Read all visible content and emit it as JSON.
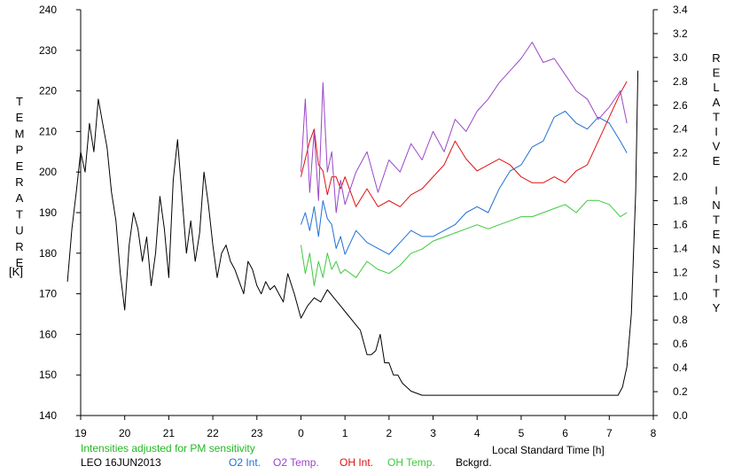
{
  "chart_data": {
    "type": "line",
    "left_axis_label": "TEMPERATURE",
    "left_axis_unit": "[K]",
    "right_axis_label": "RELATIVE INTENSITY",
    "xlabel": "Local Standard Time [h]",
    "note": "Intensities adjusted for PM sensitivity",
    "station": "LEO 16JUN2013",
    "left_ylim": [
      140,
      240
    ],
    "left_yticks": [
      140,
      150,
      160,
      170,
      180,
      190,
      200,
      210,
      220,
      230,
      240
    ],
    "right_ylim": [
      0.0,
      3.4
    ],
    "right_yticks": [
      "0.0",
      "0.2",
      "0.4",
      "0.6",
      "0.8",
      "1.0",
      "1.2",
      "1.4",
      "1.6",
      "1.8",
      "2.0",
      "2.2",
      "2.4",
      "2.6",
      "2.8",
      "3.0",
      "3.2",
      "3.4"
    ],
    "x_ticks": [
      "19",
      "20",
      "21",
      "22",
      "23",
      "0",
      "1",
      "2",
      "3",
      "4",
      "5",
      "6",
      "7",
      "8"
    ],
    "colors": {
      "o2_int": "#1f6fd6",
      "o2_temp": "#9a46c8",
      "oh_int": "#e01010",
      "oh_temp": "#3ec83e",
      "bckgrd": "#000000",
      "note": "#22b822"
    },
    "series": [
      {
        "name": "O2 Int.",
        "axis": "right",
        "x": [
          0.0,
          0.1,
          0.2,
          0.3,
          0.4,
          0.5,
          0.6,
          0.7,
          0.8,
          0.9,
          1.0,
          1.25,
          1.5,
          1.75,
          2.0,
          2.25,
          2.5,
          2.75,
          3.0,
          3.25,
          3.5,
          3.75,
          4.0,
          4.25,
          4.5,
          4.75,
          5.0,
          5.25,
          5.5,
          5.75,
          6.0,
          6.25,
          6.5,
          6.75,
          7.0,
          7.25,
          7.4
        ],
        "values": [
          1.6,
          1.7,
          1.55,
          1.75,
          1.5,
          1.8,
          1.65,
          1.6,
          1.4,
          1.5,
          1.35,
          1.55,
          1.45,
          1.4,
          1.35,
          1.45,
          1.55,
          1.5,
          1.5,
          1.55,
          1.6,
          1.7,
          1.75,
          1.7,
          1.9,
          2.05,
          2.1,
          2.25,
          2.3,
          2.5,
          2.55,
          2.45,
          2.4,
          2.5,
          2.45,
          2.3,
          2.2
        ]
      },
      {
        "name": "O2 Temp.",
        "axis": "left",
        "x": [
          0.0,
          0.1,
          0.2,
          0.3,
          0.4,
          0.5,
          0.6,
          0.7,
          0.8,
          0.9,
          1.0,
          1.25,
          1.5,
          1.75,
          2.0,
          2.25,
          2.5,
          2.75,
          3.0,
          3.25,
          3.5,
          3.75,
          4.0,
          4.25,
          4.5,
          4.75,
          5.0,
          5.25,
          5.5,
          5.75,
          6.0,
          6.25,
          6.5,
          6.75,
          7.0,
          7.25,
          7.4
        ],
        "values": [
          200,
          218,
          195,
          210,
          193,
          222,
          200,
          205,
          190,
          198,
          192,
          200,
          205,
          195,
          203,
          200,
          207,
          203,
          210,
          205,
          213,
          210,
          215,
          218,
          222,
          225,
          228,
          232,
          227,
          228,
          224,
          220,
          218,
          213,
          216,
          220,
          212
        ]
      },
      {
        "name": "OH Int.",
        "axis": "right",
        "x": [
          0.0,
          0.1,
          0.2,
          0.3,
          0.4,
          0.5,
          0.6,
          0.7,
          0.8,
          0.9,
          1.0,
          1.25,
          1.5,
          1.75,
          2.0,
          2.25,
          2.5,
          2.75,
          3.0,
          3.25,
          3.5,
          3.75,
          4.0,
          4.25,
          4.5,
          4.75,
          5.0,
          5.25,
          5.5,
          5.75,
          6.0,
          6.25,
          6.5,
          6.75,
          7.0,
          7.25,
          7.4
        ],
        "values": [
          2.0,
          2.15,
          2.3,
          2.4,
          2.1,
          2.05,
          1.85,
          2.0,
          2.0,
          1.9,
          2.0,
          1.75,
          1.9,
          1.75,
          1.8,
          1.75,
          1.85,
          1.9,
          2.0,
          2.1,
          2.3,
          2.15,
          2.05,
          2.1,
          2.15,
          2.1,
          2.0,
          1.95,
          1.95,
          2.0,
          1.95,
          2.05,
          2.1,
          2.3,
          2.5,
          2.7,
          2.8
        ]
      },
      {
        "name": "OH Temp.",
        "axis": "left",
        "x": [
          0.0,
          0.1,
          0.2,
          0.3,
          0.4,
          0.5,
          0.6,
          0.7,
          0.8,
          0.9,
          1.0,
          1.25,
          1.5,
          1.75,
          2.0,
          2.25,
          2.5,
          2.75,
          3.0,
          3.25,
          3.5,
          3.75,
          4.0,
          4.25,
          4.5,
          4.75,
          5.0,
          5.25,
          5.5,
          5.75,
          6.0,
          6.25,
          6.5,
          6.75,
          7.0,
          7.25,
          7.4
        ],
        "values": [
          182,
          175,
          180,
          172,
          178,
          174,
          180,
          176,
          178,
          175,
          176,
          174,
          178,
          176,
          175,
          177,
          180,
          181,
          183,
          184,
          185,
          186,
          187,
          186,
          187,
          188,
          189,
          189,
          190,
          191,
          192,
          190,
          193,
          193,
          192,
          189,
          190
        ]
      },
      {
        "name": "Bckgrd.",
        "axis": "left",
        "x": [
          -0.3,
          -0.15,
          0.0,
          0.15,
          0.3,
          0.45,
          0.6,
          0.75,
          0.9,
          1.05,
          1.2,
          1.35,
          1.5,
          1.6,
          1.7,
          1.8,
          1.9,
          2.0,
          2.1,
          2.2,
          2.3,
          2.5,
          2.75,
          3.0,
          3.25,
          3.5,
          3.75,
          4.0,
          4.25,
          4.5,
          4.75,
          5.0,
          5.25,
          5.5,
          5.75,
          6.0,
          6.25,
          6.5,
          6.75,
          7.0,
          7.2,
          7.3,
          7.4,
          7.5,
          7.6,
          7.65
        ],
        "values": [
          175,
          170,
          164,
          167,
          169,
          168,
          171,
          169,
          167,
          165,
          163,
          161,
          155,
          155,
          156,
          160,
          153,
          153,
          150,
          150,
          148,
          146,
          145,
          145,
          145,
          145,
          145,
          145,
          145,
          145,
          145,
          145,
          145,
          145,
          145,
          145,
          145,
          145,
          145,
          145,
          145,
          147,
          152,
          165,
          195,
          225
        ]
      }
    ],
    "evening_x": [
      -5.3,
      -5.2,
      -5.1,
      -5.0,
      -4.9,
      -4.8,
      -4.7,
      -4.6,
      -4.5,
      -4.4,
      -4.3,
      -4.2,
      -4.1,
      -4.0,
      -3.9,
      -3.8,
      -3.7,
      -3.6,
      -3.5,
      -3.4,
      -3.3,
      -3.2,
      -3.1,
      -3.0,
      -2.9,
      -2.8,
      -2.7,
      -2.6,
      -2.5,
      -2.4,
      -2.3,
      -2.2,
      -2.1,
      -2.0,
      -1.9,
      -1.8,
      -1.7,
      -1.6,
      -1.5,
      -1.4,
      -1.3,
      -1.2,
      -1.1,
      -1.0,
      -0.9,
      -0.8,
      -0.7,
      -0.6,
      -0.5,
      -0.4,
      -0.3
    ],
    "evening_values": [
      173,
      186,
      195,
      205,
      200,
      212,
      205,
      218,
      212,
      206,
      195,
      188,
      175,
      166,
      182,
      190,
      186,
      178,
      184,
      172,
      180,
      194,
      186,
      174,
      198,
      208,
      194,
      180,
      188,
      178,
      185,
      200,
      192,
      182,
      174,
      180,
      182,
      178,
      176,
      173,
      170,
      178,
      176,
      172,
      170,
      173,
      171,
      172,
      170,
      168,
      175
    ]
  },
  "legend": [
    {
      "label": "LEO 16JUN2013",
      "color": "#000000"
    },
    {
      "label": "O2 Int.",
      "color": "#1f6fd6"
    },
    {
      "label": "O2 Temp.",
      "color": "#9a46c8"
    },
    {
      "label": "OH Int.",
      "color": "#e01010"
    },
    {
      "label": "OH Temp.",
      "color": "#3ec83e"
    },
    {
      "label": "Bckgrd.",
      "color": "#000000"
    }
  ]
}
